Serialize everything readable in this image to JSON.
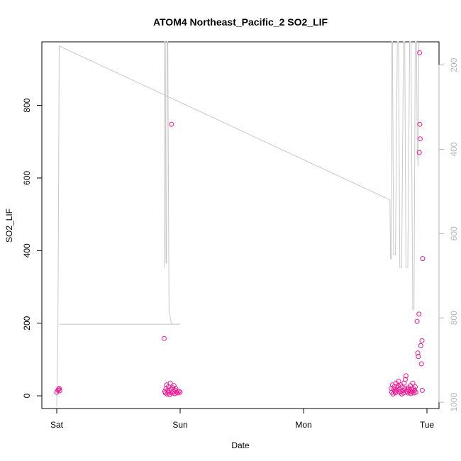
{
  "chart_data": {
    "type": "scatter",
    "title": "ATOM4 Northeast_Pacific_2 SO2_LIF",
    "xlabel": "Date",
    "ylabel": "SO2_LIF",
    "x_ticks": [
      "Sat",
      "Sun",
      "Mon",
      "Tue"
    ],
    "x_range_days": [
      -0.02,
      3.1
    ],
    "ylim": [
      -35,
      975
    ],
    "y_ticks": [
      0,
      200,
      400,
      600,
      800
    ],
    "y2_ticks": [
      200,
      400,
      600,
      800,
      1000
    ],
    "y2_range_inverted": [
      145,
      1015
    ],
    "colors": {
      "points": "#ff1493",
      "points_alt": "#e0198f",
      "altitude_line": "#c8c8c8",
      "axes": "#000000",
      "right_axis": "#b5b5b5"
    },
    "series": [
      {
        "type": "scatter",
        "points": [
          [
            0.0,
            10
          ],
          [
            0.01,
            15
          ],
          [
            0.015,
            18
          ],
          [
            0.02,
            20
          ],
          [
            0.025,
            14
          ],
          [
            0.87,
            158
          ],
          [
            0.875,
            12
          ],
          [
            0.88,
            8
          ],
          [
            0.885,
            20
          ],
          [
            0.89,
            30
          ],
          [
            0.895,
            5
          ],
          [
            0.9,
            15
          ],
          [
            0.905,
            25
          ],
          [
            0.91,
            10
          ],
          [
            0.915,
            3
          ],
          [
            0.92,
            35
          ],
          [
            0.925,
            18
          ],
          [
            0.93,
            748
          ],
          [
            0.935,
            8
          ],
          [
            0.94,
            22
          ],
          [
            0.945,
            12
          ],
          [
            0.95,
            28
          ],
          [
            0.955,
            6
          ],
          [
            0.96,
            15
          ],
          [
            0.965,
            20
          ],
          [
            0.97,
            10
          ],
          [
            0.98,
            8
          ],
          [
            0.99,
            12
          ],
          [
            1.0,
            10
          ],
          [
            2.71,
            20
          ],
          [
            2.715,
            10
          ],
          [
            2.72,
            30
          ],
          [
            2.725,
            5
          ],
          [
            2.73,
            18
          ],
          [
            2.735,
            25
          ],
          [
            2.74,
            12
          ],
          [
            2.745,
            8
          ],
          [
            2.75,
            35
          ],
          [
            2.755,
            15
          ],
          [
            2.76,
            22
          ],
          [
            2.765,
            28
          ],
          [
            2.77,
            40
          ],
          [
            2.775,
            18
          ],
          [
            2.78,
            10
          ],
          [
            2.785,
            30
          ],
          [
            2.79,
            12
          ],
          [
            2.795,
            5
          ],
          [
            2.8,
            25
          ],
          [
            2.805,
            15
          ],
          [
            2.81,
            8
          ],
          [
            2.815,
            35
          ],
          [
            2.82,
            20
          ],
          [
            2.825,
            45
          ],
          [
            2.83,
            55
          ],
          [
            2.835,
            12
          ],
          [
            2.84,
            18
          ],
          [
            2.845,
            8
          ],
          [
            2.85,
            22
          ],
          [
            2.855,
            15
          ],
          [
            2.86,
            10
          ],
          [
            2.865,
            28
          ],
          [
            2.87,
            6
          ],
          [
            2.875,
            18
          ],
          [
            2.88,
            12
          ],
          [
            2.885,
            35
          ],
          [
            2.89,
            20
          ],
          [
            2.895,
            8
          ],
          [
            2.9,
            15
          ],
          [
            2.905,
            25
          ],
          [
            2.91,
            10
          ],
          [
            2.92,
            205
          ],
          [
            2.925,
            118
          ],
          [
            2.93,
            108
          ],
          [
            2.935,
            225
          ],
          [
            2.94,
            945
          ],
          [
            2.942,
            748
          ],
          [
            2.945,
            708
          ],
          [
            2.938,
            670
          ],
          [
            2.95,
            138
          ],
          [
            2.955,
            88
          ],
          [
            2.96,
            152
          ],
          [
            2.965,
            378
          ],
          [
            2.962,
            15
          ]
        ]
      },
      {
        "type": "line",
        "name": "altitude",
        "points": [
          [
            0.0,
            1010
          ],
          [
            0.01,
            815
          ],
          [
            0.02,
            155
          ],
          [
            2.7,
            520
          ],
          [
            2.705,
            660
          ],
          [
            2.712,
            660
          ],
          [
            2.715,
            145
          ],
          [
            2.72,
            145
          ],
          [
            2.73,
            650
          ],
          [
            2.745,
            650
          ],
          [
            2.76,
            145
          ],
          [
            2.77,
            145
          ],
          [
            2.78,
            680
          ],
          [
            2.795,
            680
          ],
          [
            2.81,
            145
          ],
          [
            2.82,
            145
          ],
          [
            2.83,
            680
          ],
          [
            2.845,
            680
          ],
          [
            2.86,
            145
          ],
          [
            2.87,
            145
          ],
          [
            2.885,
            780
          ],
          [
            2.895,
            780
          ],
          [
            2.905,
            145
          ],
          [
            2.915,
            145
          ],
          [
            2.922,
            400
          ],
          [
            2.928,
            440
          ],
          [
            2.935,
            145
          ]
        ]
      },
      {
        "type": "line",
        "name": "altitude-sun",
        "points": [
          [
            0.87,
            680
          ],
          [
            0.875,
            145
          ],
          [
            0.88,
            145
          ],
          [
            0.885,
            670
          ],
          [
            0.89,
            670
          ],
          [
            0.895,
            145
          ],
          [
            0.9,
            145
          ],
          [
            0.91,
            780
          ],
          [
            0.92,
            800
          ],
          [
            0.93,
            815
          ],
          [
            1.0,
            815
          ]
        ]
      },
      {
        "type": "line",
        "name": "altitude-bottom",
        "points": [
          [
            0.02,
            815
          ],
          [
            1.0,
            815
          ]
        ]
      }
    ]
  }
}
